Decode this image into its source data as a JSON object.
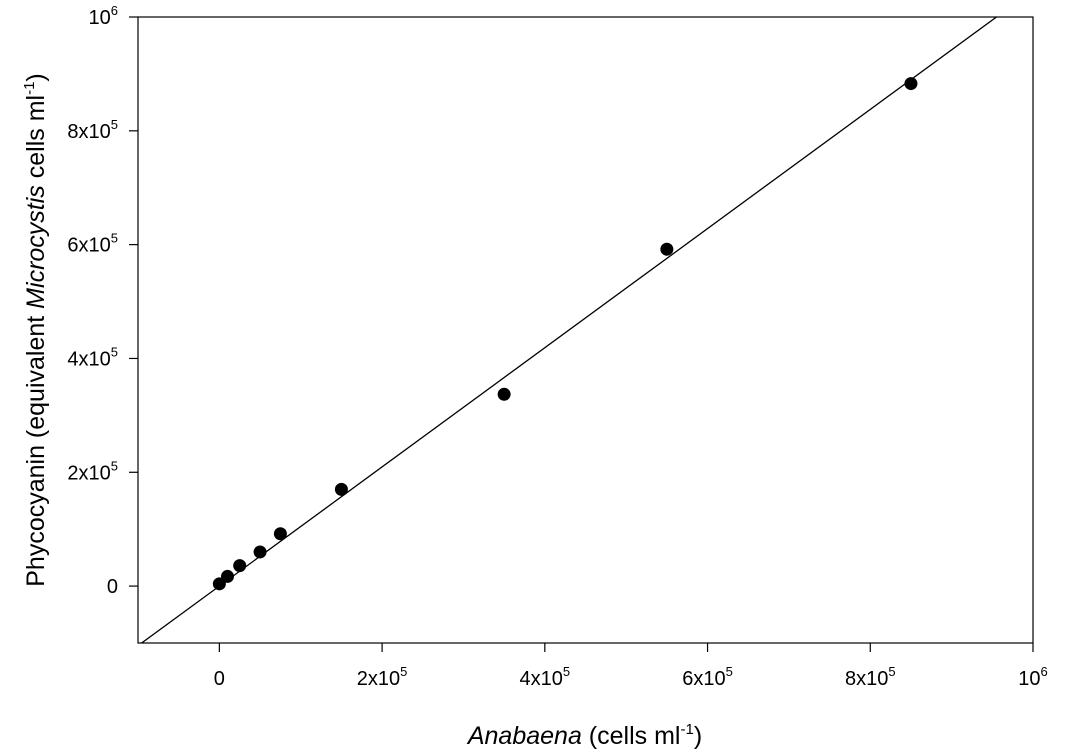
{
  "chart_data": {
    "type": "scatter",
    "xlabel": {
      "italic": "Anabaena",
      "rest": " (cells ml",
      "sup": "-1",
      "end": ")"
    },
    "ylabel": {
      "pre": "Phycocyanin (equivalent ",
      "italic": "Microcystis",
      "rest": " cells ml",
      "sup": "-1",
      "end": ")"
    },
    "xlim": [
      -100000,
      1000000
    ],
    "ylim": [
      -100000,
      1000000
    ],
    "x_ticks": [
      {
        "value": 0,
        "base": "0",
        "exp": ""
      },
      {
        "value": 200000,
        "base": "2x10",
        "exp": "5"
      },
      {
        "value": 400000,
        "base": "4x10",
        "exp": "5"
      },
      {
        "value": 600000,
        "base": "6x10",
        "exp": "5"
      },
      {
        "value": 800000,
        "base": "8x10",
        "exp": "5"
      },
      {
        "value": 1000000,
        "base": "10",
        "exp": "6"
      }
    ],
    "y_ticks": [
      {
        "value": 0,
        "base": "0",
        "exp": ""
      },
      {
        "value": 200000,
        "base": "2x10",
        "exp": "5"
      },
      {
        "value": 400000,
        "base": "4x10",
        "exp": "5"
      },
      {
        "value": 600000,
        "base": "6x10",
        "exp": "5"
      },
      {
        "value": 800000,
        "base": "8x10",
        "exp": "5"
      },
      {
        "value": 1000000,
        "base": "10",
        "exp": "6"
      }
    ],
    "points": [
      {
        "x": 0,
        "y": 4000
      },
      {
        "x": 10000,
        "y": 17000
      },
      {
        "x": 25000,
        "y": 36000
      },
      {
        "x": 50000,
        "y": 60000
      },
      {
        "x": 75000,
        "y": 92000
      },
      {
        "x": 150000,
        "y": 170000
      },
      {
        "x": 350000,
        "y": 337000
      },
      {
        "x": 550000,
        "y": 592000
      },
      {
        "x": 850000,
        "y": 883000
      }
    ],
    "fit_line": {
      "slope": 1.047,
      "intercept": 0
    },
    "marker_color": "#000000",
    "line_color": "#000000",
    "grid": false,
    "legend": "none"
  }
}
